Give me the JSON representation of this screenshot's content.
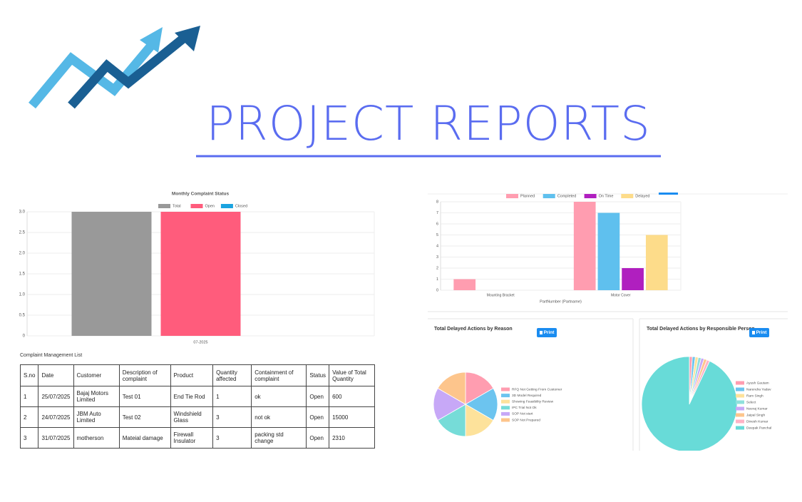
{
  "header": {
    "title": "PROJECT REPORTS"
  },
  "chart_data": [
    {
      "type": "bar",
      "title": "Monthly Complaint Status",
      "categories": [
        "07-2025"
      ],
      "series": [
        {
          "name": "Total",
          "color": "#999999",
          "values": [
            3
          ]
        },
        {
          "name": "Open",
          "color": "#ff5c7c",
          "values": [
            3
          ]
        },
        {
          "name": "Closed",
          "color": "#1aa3e0",
          "values": [
            0
          ]
        }
      ],
      "ylim": [
        0,
        3
      ],
      "yticks": [
        0,
        0.5,
        {
          "value": 1,
          "label": "1.0"
        },
        1.5,
        {
          "value": 2,
          "label": "2.0"
        },
        2.5,
        {
          "value": 3,
          "label": "3.0"
        }
      ],
      "grid": true
    },
    {
      "type": "bar",
      "x_label": "PartNumber (Partname)",
      "categories": [
        "Mounting Bracket",
        "Motor Cover"
      ],
      "series": [
        {
          "name": "Planned",
          "color": "#ff9db0",
          "values": [
            1,
            8
          ]
        },
        {
          "name": "Completed",
          "color": "#5fc0ee",
          "values": [
            0,
            7
          ]
        },
        {
          "name": "On Time",
          "color": "#b01fbf",
          "values": [
            0,
            2
          ]
        },
        {
          "name": "Delayed",
          "color": "#fddc8a",
          "values": [
            0,
            5
          ]
        }
      ],
      "ylim": [
        0,
        8
      ],
      "yticks": [
        0,
        1,
        2,
        3,
        4,
        5,
        6,
        7,
        8
      ],
      "grid": true
    },
    {
      "type": "pie",
      "title": "Total Delayed Actions by Reason",
      "button": "Print",
      "categories": [
        "RFQ Not Getting From Customer",
        "3D Model Required",
        "Showing Feasibility Review",
        "IPC Trial Not Ok",
        "SOP Not start",
        "SOP Not Prepared"
      ],
      "values": [
        1,
        1,
        1,
        1,
        1,
        1
      ],
      "colors": [
        "#ff9db0",
        "#6cc4ef",
        "#fde29b",
        "#76dcd8",
        "#c7a8f7",
        "#fdc58c"
      ]
    },
    {
      "type": "pie",
      "title": "Total Delayed Actions by Responsible Person",
      "button": "Print",
      "categories": [
        "Ayush Gautam",
        "Narendra Yadav",
        "Ram Singh",
        "Select",
        "Neeraj Kumar",
        "Jaipal Singh",
        "Dinesh Kumar",
        "Deepak Panchal"
      ],
      "values": [
        1,
        1,
        1,
        1,
        1,
        1,
        1,
        93
      ],
      "colors": [
        "#ff9db0",
        "#6cc4ef",
        "#fde29b",
        "#8fe0dc",
        "#c7a8f7",
        "#fdc58c",
        "#ffb3c6",
        "#68dbd8"
      ]
    }
  ],
  "table": {
    "title": "Complaint Management List",
    "headers": [
      "S.no",
      "Date",
      "Customer",
      "Description of complaint",
      "Product",
      "Quantity affected",
      "Containment of complaint",
      "Status",
      "Value of Total Quantity"
    ],
    "rows": [
      [
        1,
        "25/07/2025",
        "Bajaj Motors Limited",
        "Test 01",
        "End Tie Rod",
        1,
        "ok",
        "Open",
        600
      ],
      [
        2,
        "24/07/2025",
        "JBM Auto Limited",
        "Test 02",
        "Windshield Glass",
        3,
        "not ok",
        "Open",
        15000
      ],
      [
        3,
        "31/07/2025",
        "motherson",
        "Mateial damage",
        "Firewall Insulator",
        3,
        "packing std change",
        "Open",
        2310
      ]
    ]
  }
}
